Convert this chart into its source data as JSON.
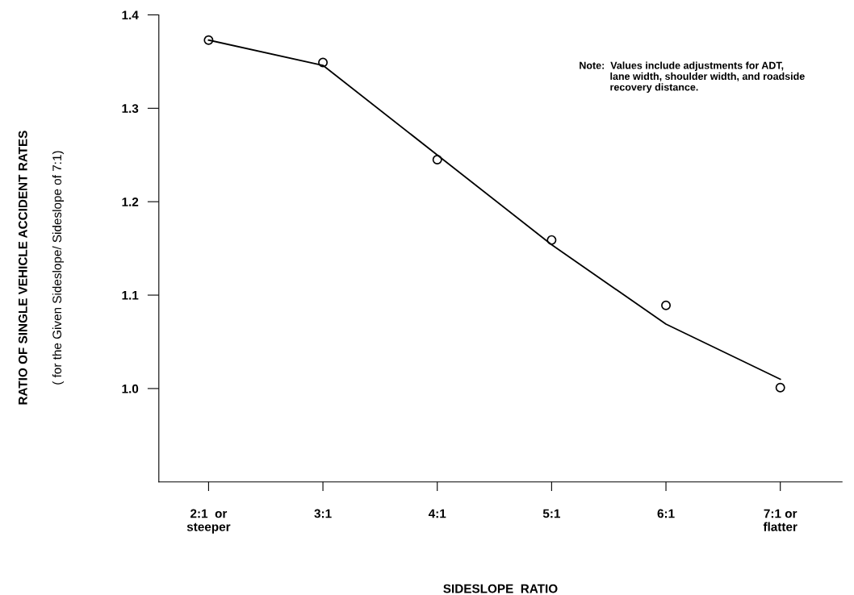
{
  "chart_data": {
    "type": "scatter",
    "xlabel": "SIDESLOPE  RATIO",
    "ylabel": "RATIO OF SINGLE VEHICLE ACCIDENT RATES\n( for the Given Sideslope/ Sideslope of 7:1)",
    "categories": [
      "2:1  or\nsteeper",
      "3:1",
      "4:1",
      "5:1",
      "6:1",
      "7:1 or\nflatter"
    ],
    "ylim": [
      0.9,
      1.4
    ],
    "yticks": [
      {
        "value": 1.0,
        "label": "1.0"
      },
      {
        "value": 1.1,
        "label": "1.1"
      },
      {
        "value": 1.2,
        "label": "1.2"
      },
      {
        "value": 1.3,
        "label": "1.3"
      },
      {
        "value": 1.4,
        "label": "1.4"
      }
    ],
    "grid": false,
    "series": [
      {
        "color": "#000000",
        "marker": "circle",
        "values": [
          1.373,
          1.349,
          1.245,
          1.159,
          1.089,
          1.001
        ]
      },
      {
        "type": "line",
        "color": "#000000",
        "marker": "none",
        "line_style": "solid",
        "values": [
          1.373,
          1.346,
          1.25,
          1.154,
          1.069,
          1.01
        ]
      }
    ],
    "annotations": [
      "Note:  Values include adjustments for ADT,\n           lane width, shoulder width, and roadside\n           recovery distance."
    ]
  }
}
